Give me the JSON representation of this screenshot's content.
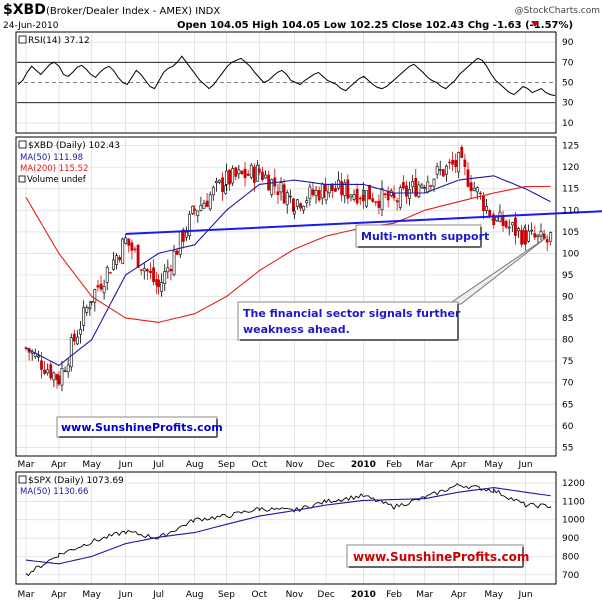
{
  "header": {
    "symbol": "$XBD",
    "name": "(Broker/Dealer Index - AMEX) INDX",
    "watermark": "@StockCharts.com",
    "date": "24-Jun-2010",
    "quote": "Open 104.05  High 104.05  Low 102.25  Close 102.43  Chg -1.63 (-1.57%)"
  },
  "rsi_panel": {
    "label": "RSI(14) 37.12",
    "ticks": [
      "90",
      "70",
      "50",
      "30",
      "10"
    ],
    "tick_values": [
      90,
      70,
      50,
      30,
      10
    ],
    "overbought": 70,
    "oversold": 30,
    "midline": 50
  },
  "main_panel": {
    "legend": [
      "$XBD (Daily) 102.43",
      "MA(50) 111.98",
      "MA(200) 115.52",
      "Volume undef"
    ],
    "ticks": [
      "125",
      "120",
      "115",
      "110",
      "105",
      "100",
      "95",
      "90",
      "85",
      "80",
      "75",
      "70",
      "65",
      "60",
      "55"
    ],
    "tick_values": [
      125,
      120,
      115,
      110,
      105,
      100,
      95,
      90,
      85,
      80,
      75,
      70,
      65,
      60,
      55
    ],
    "annotation_support": "Multi-month support",
    "annotation_weakness": "The financial sector signals further weakness ahead.",
    "site_label": "www.SunshineProfits.com"
  },
  "spx_panel": {
    "legend": [
      "$SPX (Daily) 1073.69",
      "MA(50) 1130.66"
    ],
    "ticks": [
      "1200",
      "1100",
      "1000",
      "900",
      "800",
      "700"
    ],
    "tick_values": [
      1200,
      1100,
      1000,
      900,
      800,
      700
    ],
    "site_label": "www.SunshineProfits.com"
  },
  "x_axis": {
    "labels": [
      "Mar",
      "Apr",
      "May",
      "Jun",
      "Jul",
      "Aug",
      "Sep",
      "Oct",
      "Nov",
      "Dec",
      "2010",
      "Feb",
      "Mar",
      "Apr",
      "May",
      "Jun"
    ]
  },
  "colors": {
    "ma50": "#1a1aa0",
    "ma200": "#e02020",
    "support_line": "#1a1aee",
    "up_candle": "#000000",
    "down_candle": "#cc0000",
    "site_label_blue": "#0000cc",
    "site_label_red": "#cc0000"
  },
  "chart_data": [
    {
      "type": "line",
      "title": "RSI(14) 37.12",
      "ylim": [
        0,
        100
      ],
      "series": [
        {
          "name": "RSI(14)",
          "values": [
            48,
            52,
            60,
            66,
            62,
            58,
            63,
            68,
            70,
            66,
            58,
            56,
            60,
            65,
            67,
            63,
            58,
            55,
            60,
            64,
            66,
            62,
            55,
            50,
            48,
            55,
            62,
            58,
            52,
            46,
            44,
            52,
            60,
            64,
            66,
            70,
            76,
            70,
            64,
            58,
            52,
            48,
            44,
            48,
            54,
            60,
            66,
            70,
            72,
            74,
            70,
            66,
            60,
            55,
            50,
            52,
            56,
            60,
            62,
            58,
            52,
            50,
            48,
            52,
            55,
            58,
            60,
            56,
            52,
            50,
            48,
            44,
            42,
            46,
            50,
            54,
            56,
            52,
            48,
            45,
            44,
            46,
            50,
            54,
            58,
            62,
            66,
            68,
            64,
            60,
            55,
            52,
            50,
            46,
            44,
            48,
            52,
            58,
            62,
            66,
            70,
            74,
            72,
            66,
            58,
            52,
            48,
            44,
            40,
            38,
            42,
            46,
            44,
            40,
            42,
            44,
            40,
            38,
            37
          ]
        }
      ]
    },
    {
      "type": "line",
      "title": "$XBD (Daily)",
      "ylim": [
        55,
        127
      ],
      "x": [
        "2009-03-02",
        "2009-04-01",
        "2009-05-01",
        "2009-06-01",
        "2009-07-01",
        "2009-08-03",
        "2009-09-01",
        "2009-10-01",
        "2009-11-02",
        "2009-12-01",
        "2010-01-04",
        "2010-02-01",
        "2010-03-01",
        "2010-04-01",
        "2010-05-03",
        "2010-06-01",
        "2010-06-24"
      ],
      "series": [
        {
          "name": "$XBD (Daily)",
          "values": [
            78,
            71,
            90,
            103,
            92,
            110,
            117,
            119,
            112,
            115,
            114,
            112,
            117,
            121,
            108,
            104,
            102.43
          ]
        },
        {
          "name": "MA(50)",
          "values": [
            78,
            74,
            80,
            95,
            100,
            102,
            110,
            116,
            117,
            116,
            116,
            114,
            114,
            117,
            118,
            115,
            111.98
          ]
        },
        {
          "name": "MA(200)",
          "values": [
            113,
            100,
            90,
            85,
            84,
            86,
            90,
            96,
            101,
            104,
            106,
            107,
            110,
            112,
            114,
            115.5,
            115.52
          ]
        },
        {
          "name": "Multi-month support",
          "values_at": {
            "2009-06-01": 104.5,
            "2010-06-24": 109.2
          }
        }
      ]
    },
    {
      "type": "line",
      "title": "$SPX (Daily) 1073.69",
      "ylim": [
        650,
        1260
      ],
      "x": [
        "2009-03-02",
        "2009-04-01",
        "2009-05-01",
        "2009-06-01",
        "2009-07-01",
        "2009-08-03",
        "2009-09-01",
        "2009-10-01",
        "2009-11-02",
        "2009-12-01",
        "2010-01-04",
        "2010-02-01",
        "2010-03-01",
        "2010-04-01",
        "2010-05-03",
        "2010-06-01",
        "2010-06-24"
      ],
      "series": [
        {
          "name": "$SPX (Daily)",
          "values": [
            700,
            810,
            880,
            935,
            900,
            1000,
            1020,
            1060,
            1050,
            1100,
            1130,
            1070,
            1120,
            1190,
            1160,
            1080,
            1073.69
          ]
        },
        {
          "name": "MA(50)",
          "values": [
            780,
            760,
            800,
            870,
            905,
            930,
            975,
            1020,
            1050,
            1080,
            1105,
            1110,
            1115,
            1150,
            1175,
            1150,
            1130.66
          ]
        }
      ]
    }
  ]
}
